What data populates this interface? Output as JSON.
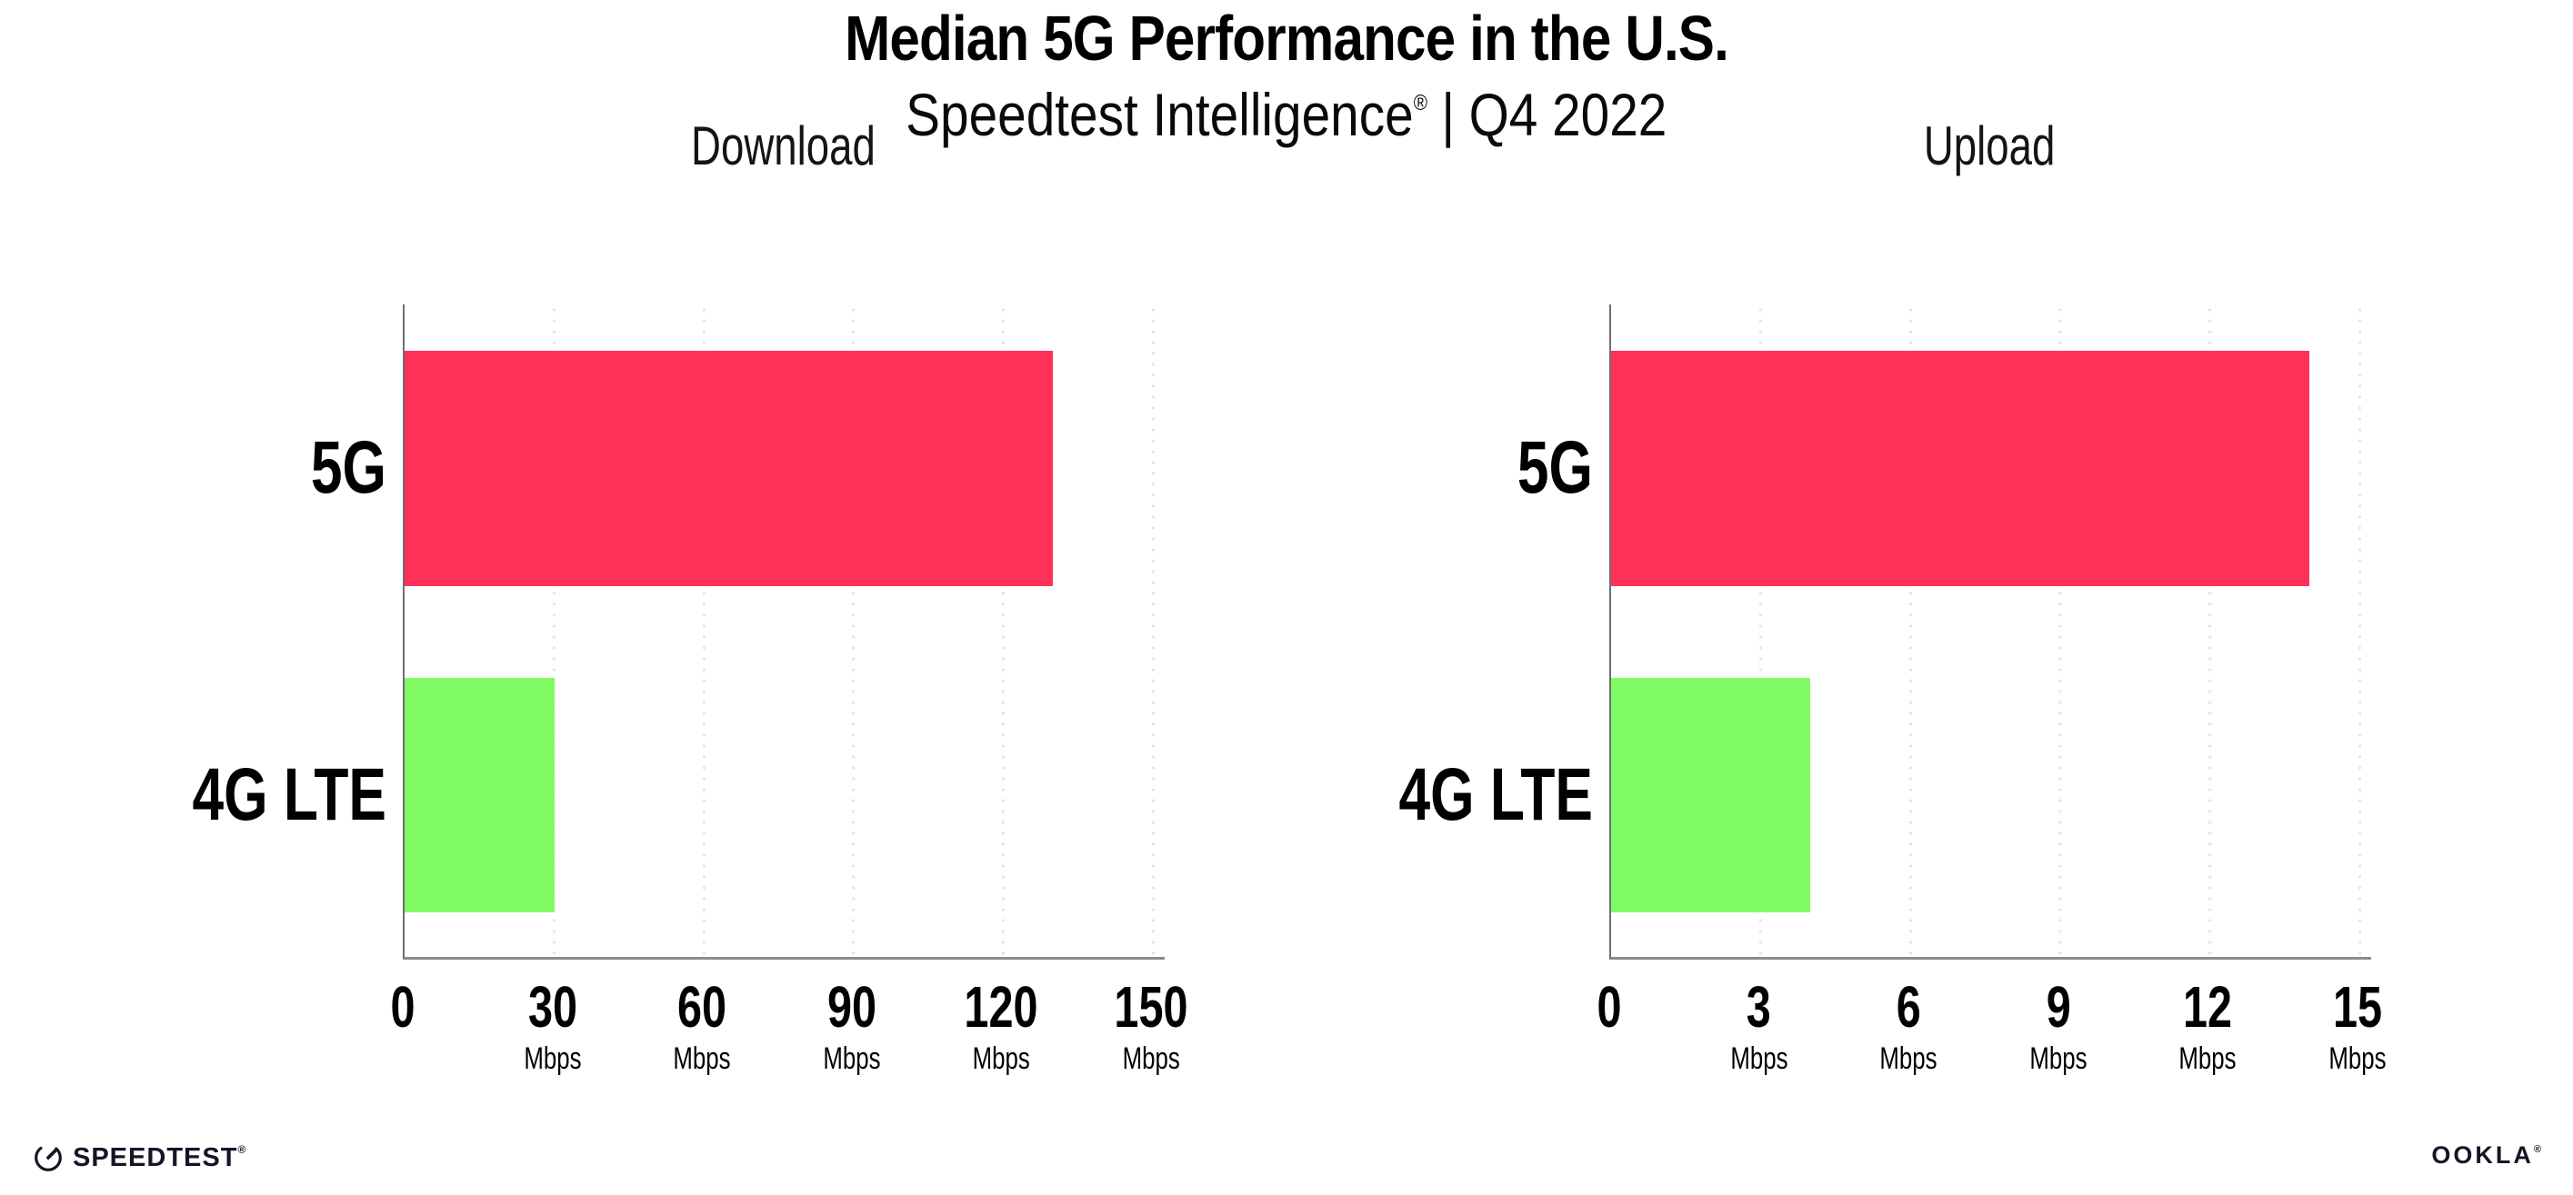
{
  "header": {
    "title": "Median 5G Performance in the U.S.",
    "subtitle_brand": "Speedtest Intelligence",
    "subtitle_reg": "®",
    "subtitle_separator": "|",
    "subtitle_period": "Q4 2022"
  },
  "chart_data": [
    {
      "type": "bar",
      "orientation": "horizontal",
      "title": "Download",
      "categories": [
        "5G",
        "4G LTE"
      ],
      "values": [
        130,
        30
      ],
      "unit": "Mbps",
      "xlabel": "",
      "ylabel": "",
      "xlim": [
        0,
        150
      ],
      "xticks": [
        0,
        30,
        60,
        90,
        120,
        150
      ],
      "xtick_unit_shown_from_index": 1,
      "bar_colors": [
        "#FF3158",
        "#80FB61"
      ],
      "grid": "dotted-vertical",
      "legend": "none"
    },
    {
      "type": "bar",
      "orientation": "horizontal",
      "title": "Upload",
      "categories": [
        "5G",
        "4G LTE"
      ],
      "values": [
        14,
        4
      ],
      "unit": "Mbps",
      "xlabel": "",
      "ylabel": "",
      "xlim": [
        0,
        15
      ],
      "xticks": [
        0,
        3,
        6,
        9,
        12,
        15
      ],
      "xtick_unit_shown_from_index": 1,
      "bar_colors": [
        "#FF3158",
        "#80FB61"
      ],
      "grid": "dotted-vertical",
      "legend": "none"
    }
  ],
  "colors": {
    "bar_5g": "#FF3158",
    "bar_4g_lte": "#80FB61",
    "gridline": "#E3E3EB",
    "y_axis_line": "#6E6E78",
    "x_axis_line": "#8A8A90",
    "text": "#000000"
  },
  "footer": {
    "speedtest_logo_text": "SPEEDTEST",
    "speedtest_mark": "®",
    "ookla_logo_text": "OOKLA",
    "ookla_mark": "®"
  }
}
